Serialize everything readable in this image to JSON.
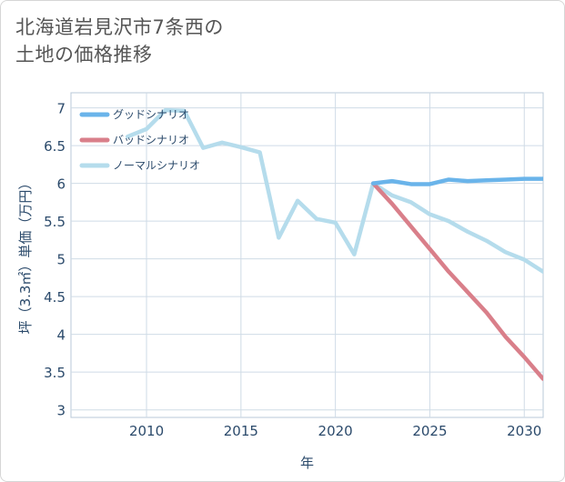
{
  "title_line1": "北海道岩見沢市7条西の",
  "title_line2": "土地の価格推移",
  "colors": {
    "good": "#6ab4ea",
    "bad": "#d97f8a",
    "normal": "#b5dcec",
    "grid": "#cfdbe6"
  },
  "chart_data": {
    "type": "line",
    "title": "北海道岩見沢市7条西の土地の価格推移",
    "xlabel": "年",
    "ylabel": "坪（3.3㎡）単価（万円）",
    "xlim": [
      2006,
      2031
    ],
    "ylim": [
      2.9,
      7.2
    ],
    "xticks": [
      2010,
      2015,
      2020,
      2025,
      2030
    ],
    "yticks": [
      3,
      3.5,
      4,
      4.5,
      5,
      5.5,
      6,
      6.5,
      7
    ],
    "ytick_labels": [
      "3",
      "3.5",
      "4",
      "4.5",
      "5",
      "5.5",
      "6",
      "6.5",
      "7"
    ],
    "legend_position": "top-left",
    "series": [
      {
        "name": "グッドシナリオ",
        "key": "good",
        "x": [
          2022,
          2023,
          2024,
          2025,
          2026,
          2027,
          2028,
          2029,
          2030,
          2031
        ],
        "y": [
          6.0,
          6.03,
          5.99,
          5.99,
          6.05,
          6.03,
          6.04,
          6.05,
          6.06,
          6.06
        ]
      },
      {
        "name": "バッドシナリオ",
        "key": "bad",
        "x": [
          2022,
          2023,
          2024,
          2025,
          2026,
          2027,
          2028,
          2029,
          2030,
          2031
        ],
        "y": [
          6.0,
          5.73,
          5.43,
          5.13,
          4.83,
          4.56,
          4.29,
          3.97,
          3.7,
          3.41
        ]
      },
      {
        "name": "ノーマルシナリオ",
        "key": "normal",
        "x": [
          2009,
          2010,
          2011,
          2012,
          2013,
          2014,
          2015,
          2016,
          2017,
          2018,
          2019,
          2020,
          2021,
          2022,
          2023,
          2024,
          2025,
          2026,
          2027,
          2028,
          2029,
          2030,
          2031
        ],
        "y": [
          6.62,
          6.72,
          6.97,
          6.96,
          6.47,
          6.54,
          6.48,
          6.41,
          5.28,
          5.77,
          5.53,
          5.48,
          5.06,
          6.0,
          5.84,
          5.75,
          5.59,
          5.5,
          5.36,
          5.24,
          5.09,
          4.99,
          4.83
        ]
      }
    ]
  }
}
